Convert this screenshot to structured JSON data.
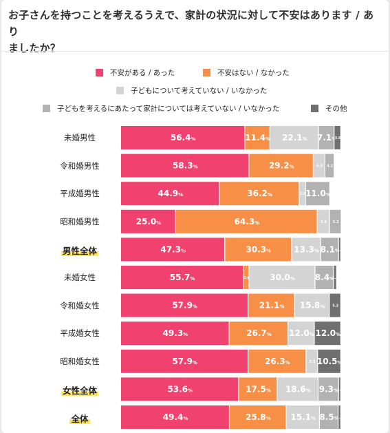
{
  "title_line1": "お子さんを持つことを考えるうえで、家計の状況に対して不安はあります / あり",
  "title_line2": "ましたか？",
  "legend": [
    {
      "label": "不安がある / あった",
      "color": "#f0416f"
    },
    {
      "label": "不安はない / なかった",
      "color": "#f79046"
    },
    {
      "label": "子どもについて考えていない / いなかった",
      "color": "#d4d4d4"
    },
    {
      "label": "子どもを考えるにあたって家計については考えていない / いなかった",
      "color": "#b2b2b2"
    },
    {
      "label": "その他",
      "color": "#6f6f6f"
    }
  ],
  "rows": [
    {
      "label": "未婚男性",
      "total": false
    },
    {
      "label": "令和婚男性",
      "total": false
    },
    {
      "label": "平成婚男性",
      "total": false
    },
    {
      "label": "昭和婚男性",
      "total": false
    },
    {
      "label": "男性全体",
      "total": true
    },
    {
      "label": "未婚女性",
      "total": false
    },
    {
      "label": "令和婚女性",
      "total": false
    },
    {
      "label": "平成婚女性",
      "total": false
    },
    {
      "label": "昭和婚女性",
      "total": false
    },
    {
      "label": "女性全体",
      "total": true
    },
    {
      "label": "全体",
      "total": true
    }
  ],
  "chart_data": {
    "type": "bar",
    "stacked": true,
    "orientation": "horizontal",
    "unit": "%",
    "categories": [
      "未婚男性",
      "令和婚男性",
      "平成婚男性",
      "昭和婚男性",
      "男性全体",
      "未婚女性",
      "令和婚女性",
      "平成婚女性",
      "昭和婚女性",
      "女性全体",
      "全体"
    ],
    "series": [
      {
        "name": "不安がある / あった",
        "color": "#f0416f",
        "values": [
          56.4,
          58.3,
          44.9,
          25.0,
          47.3,
          55.7,
          57.9,
          49.3,
          57.9,
          53.6,
          49.4
        ],
        "labels": [
          "56.4",
          "58.3",
          "44.9",
          "25.0",
          "47.3",
          "55.7",
          "57.9",
          "49.3",
          "57.9",
          "53.6",
          "49.4"
        ]
      },
      {
        "name": "不安はない / なかった",
        "color": "#f79046",
        "values": [
          11.4,
          29.2,
          36.2,
          64.3,
          30.3,
          2.6,
          21.1,
          26.7,
          26.3,
          17.5,
          25.8
        ],
        "labels": [
          "11.4",
          "29.2",
          "36.2",
          "64.3",
          "30.3",
          "2.6",
          "21.1",
          "26.7",
          "26.3",
          "17.5",
          "25.8"
        ]
      },
      {
        "name": "子どもについて考えていない / いなかった",
        "color": "#d4d4d4",
        "values": [
          22.1,
          5.3,
          2.9,
          5.6,
          13.3,
          30.0,
          15.8,
          12.0,
          5.3,
          18.6,
          15.1
        ],
        "labels": [
          "22.1",
          "5.3",
          "2.9",
          "5.6",
          "13.3",
          "30.0",
          "15.8",
          "12.0",
          "5.3",
          "18.6",
          "15.1"
        ]
      },
      {
        "name": "子どもを考えるにあたって家計については考えていない / いなかった",
        "color": "#b2b2b2",
        "values": [
          7.1,
          4.2,
          11.0,
          5.3,
          8.1,
          8.4,
          0.0,
          0.0,
          0.0,
          9.3,
          8.5
        ],
        "labels": [
          "7.1",
          "4.2",
          "11.0",
          "5.3",
          "8.1",
          "8.4",
          "",
          "",
          "",
          "9.3",
          "8.5"
        ]
      },
      {
        "name": "その他",
        "color": "#6f6f6f",
        "values": [
          3.0,
          0.0,
          0.0,
          0.0,
          1.0,
          1.4,
          5.2,
          12.0,
          10.5,
          1.0,
          1.2
        ],
        "labels": [
          "3.0",
          "",
          "",
          "",
          "1.0",
          "1.4",
          "5.2",
          "12.0",
          "10.5",
          "1.0",
          "1.2"
        ]
      }
    ]
  }
}
